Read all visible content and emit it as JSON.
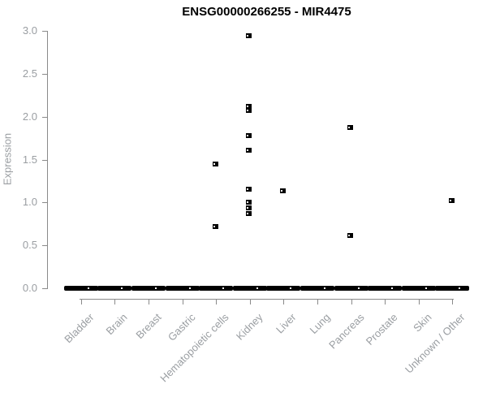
{
  "chart_data": {
    "type": "scatter",
    "subtype": "strip-plot",
    "title": "ENSG00000266255 - MIR4475",
    "xlabel": "",
    "ylabel": "Expression",
    "ylim": [
      0.0,
      3.0
    ],
    "ytick_labels": [
      "0.0",
      "0.5",
      "1.0",
      "1.5",
      "2.0",
      "2.5",
      "3.0"
    ],
    "grid": false,
    "legend": false,
    "marker": "small-black-open-square",
    "point_color": "#000000",
    "axis_color": "#8a8a8a",
    "label_color": "#9a9ea2",
    "background_color": "#ffffff",
    "zero_cluster_note": "every category shows a dense horizontal cluster of overlapping points at expression 0.0",
    "categories": [
      {
        "label": "Bladder",
        "points": [],
        "zero_cluster": true
      },
      {
        "label": "Brain",
        "points": [],
        "zero_cluster": true
      },
      {
        "label": "Breast",
        "points": [],
        "zero_cluster": true
      },
      {
        "label": "Gastric",
        "points": [],
        "zero_cluster": true
      },
      {
        "label": "Hematopoietic cells",
        "points": [
          1.45,
          0.72
        ],
        "zero_cluster": true
      },
      {
        "label": "Kidney",
        "points": [
          2.95,
          2.12,
          2.07,
          1.78,
          1.61,
          1.16,
          1.0,
          0.94,
          0.87
        ],
        "zero_cluster": true
      },
      {
        "label": "Liver",
        "points": [
          1.14
        ],
        "zero_cluster": true
      },
      {
        "label": "Lung",
        "points": [],
        "zero_cluster": true
      },
      {
        "label": "Pancreas",
        "points": [
          1.88,
          0.62
        ],
        "zero_cluster": true
      },
      {
        "label": "Prostate",
        "points": [],
        "zero_cluster": true
      },
      {
        "label": "Skin",
        "points": [],
        "zero_cluster": true
      },
      {
        "label": "Unknown / Other",
        "points": [
          1.02
        ],
        "zero_cluster": true
      }
    ]
  }
}
